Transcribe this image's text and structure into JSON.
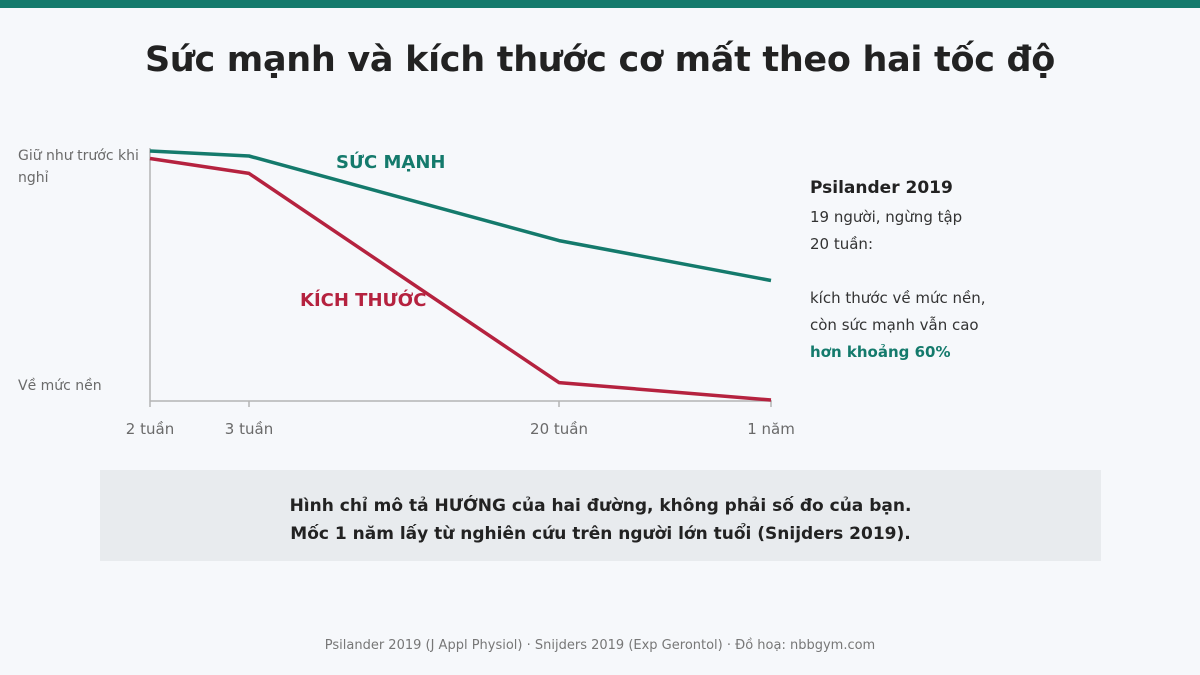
{
  "title": "Sức mạnh và kích thước cơ mất theo hai tốc độ",
  "colors": {
    "strength": "#147a6c",
    "size": "#b5223f",
    "accent_bar": "#147a6c",
    "axis": "#b4b4b4"
  },
  "chart_data": {
    "type": "line",
    "x": [
      "2 tuần",
      "3 tuần",
      "20 tuần",
      "1 năm"
    ],
    "ylabel_top": "Giữ như trước khi nghỉ",
    "ylabel_bottom": "Về mức nền",
    "ylim": [
      0,
      1
    ],
    "grid": false,
    "series": [
      {
        "name": "SỨC MẠNH",
        "values": [
          1.0,
          0.98,
          0.64,
          0.48
        ]
      },
      {
        "name": "KÍCH THƯỚC",
        "values": [
          0.97,
          0.91,
          0.07,
          0.0
        ]
      }
    ]
  },
  "note": {
    "title": "Psilander 2019",
    "line1": "19 người, ngừng tập",
    "line2": "20 tuần:",
    "line3": "kích thước về mức nền,",
    "line4": "còn sức mạnh vẫn cao",
    "highlight": "hơn khoảng 60%"
  },
  "callout": {
    "line1": "Hình chỉ mô tả HƯỚNG của hai đường, không phải số đo của bạn.",
    "line2": "Mốc 1 năm lấy từ nghiên cứu trên người lớn tuổi (Snijders 2019)."
  },
  "source": "Psilander 2019 (J Appl Physiol) · Snijders 2019 (Exp Gerontol) · Đồ hoạ: nbbgym.com"
}
